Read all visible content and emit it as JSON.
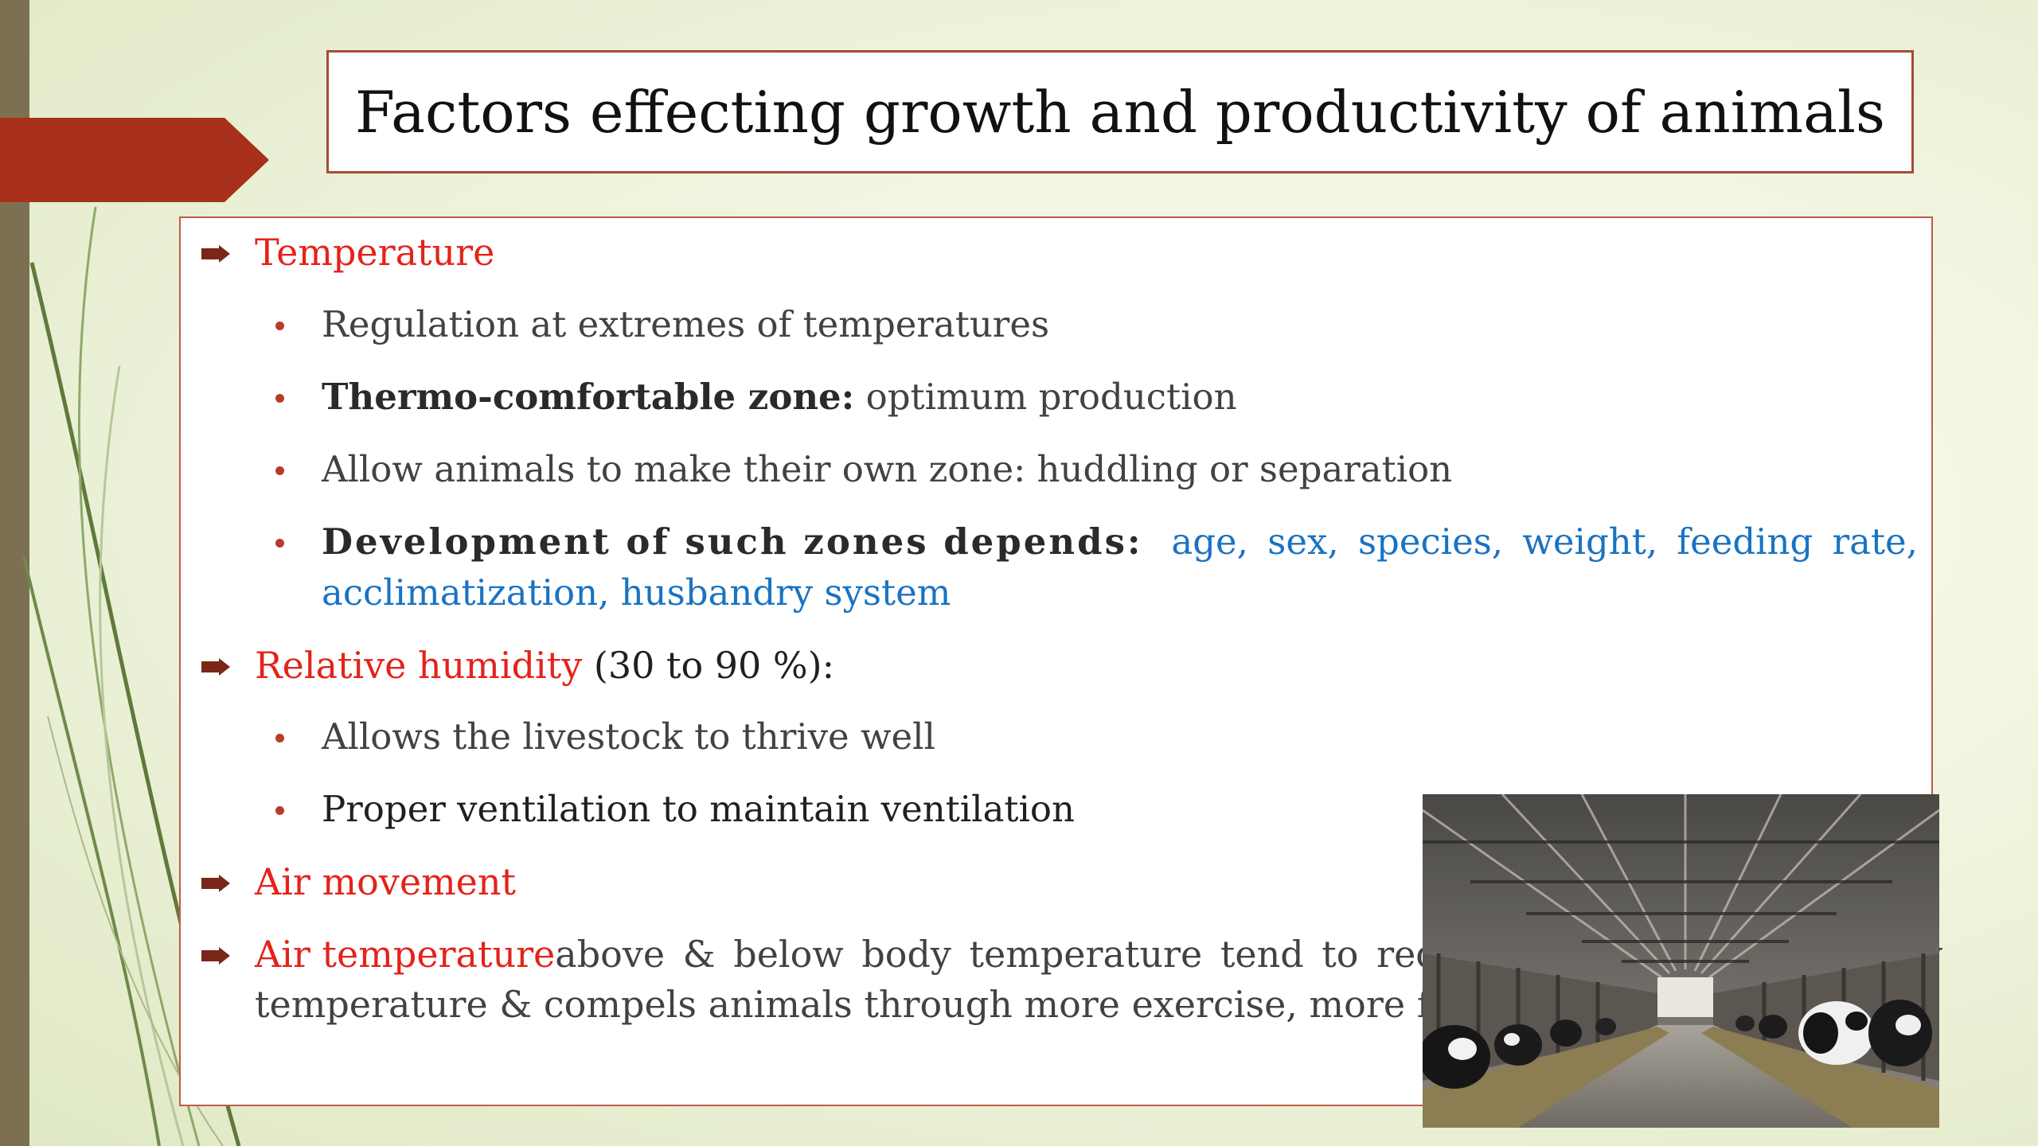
{
  "slide": {
    "title": "Factors effecting growth and productivity of animals"
  },
  "content": {
    "temperature": {
      "heading": "Temperature",
      "items": [
        "Regulation at extremes of temperatures",
        {
          "bold": "Thermo-comfortable zone:",
          "rest": " optimum production"
        },
        "Allow animals to make their own zone: huddling or separation",
        {
          "bold": "Development of such zones depends:",
          "blue_line1": "age, sex, species, weight, feeding rate,",
          "blue_line2": "acclimatization, husbandry system"
        }
      ]
    },
    "humidity": {
      "heading": "Relative humidity",
      "suffix": " (30 to 90 %):",
      "items": [
        "Allows the livestock to thrive well",
        "Proper ventilation to maintain ventilation"
      ]
    },
    "air_movement": {
      "heading": "Air movement"
    },
    "air_temperature": {
      "heading": "Air temperature",
      "line1_rest": "above & below body temperature tend to reduce dissemination of body",
      "line2": "temperature & compels animals through more exercise, more feed intake & sufferings"
    }
  },
  "colors": {
    "accent_red": "#e3231b",
    "banner": "#a8301a",
    "link_blue": "#1a73c2",
    "left_bar": "#7d7052"
  },
  "icons": {
    "bullet_level1": "right-arrow-bullet-icon",
    "bullet_level2": "round-dot-bullet-icon",
    "photo": "dairy-barn-cows-photo"
  }
}
